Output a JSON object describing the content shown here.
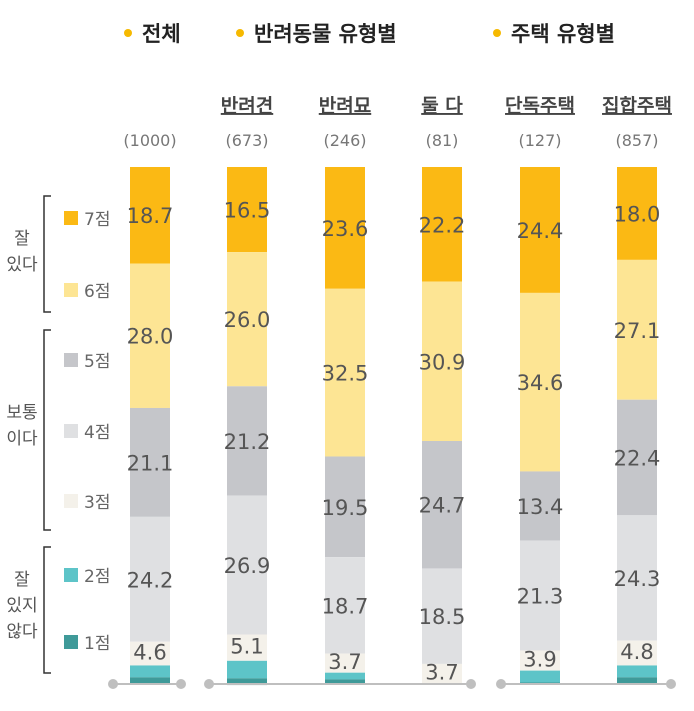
{
  "legend": [
    {
      "label": "전체",
      "color": "#f6b900"
    },
    {
      "label": "반려동물 유형별",
      "color": "#f6b900"
    },
    {
      "label": "주택 유형별",
      "color": "#f6b900"
    }
  ],
  "groups": [
    {
      "label": "잘\n있다",
      "scores": [
        "7점",
        "6점"
      ]
    },
    {
      "label": "보통\n이다",
      "scores": [
        "5점",
        "4점",
        "3점"
      ]
    },
    {
      "label": "잘\n있지\n않다",
      "scores": [
        "2점",
        "1점"
      ]
    }
  ],
  "chart_data": {
    "type": "bar",
    "stacked": true,
    "normalized": true,
    "categories": [
      "",
      "반려견",
      "반려묘",
      "둘 다",
      "단독주택",
      "집합주택"
    ],
    "sample_sizes": [
      "(1000)",
      "(673)",
      "(246)",
      "(81)",
      "(127)",
      "(857)"
    ],
    "series": [
      {
        "name": "7점",
        "color": "#fbb914",
        "values": [
          18.7,
          16.5,
          23.6,
          22.2,
          24.4,
          18.0
        ]
      },
      {
        "name": "6점",
        "color": "#fde594",
        "values": [
          28.0,
          26.0,
          32.5,
          30.9,
          34.6,
          27.1
        ]
      },
      {
        "name": "5점",
        "color": "#c5c6ca",
        "values": [
          21.1,
          21.2,
          19.5,
          24.7,
          13.4,
          22.4
        ]
      },
      {
        "name": "4점",
        "color": "#dfe0e2",
        "values": [
          24.2,
          26.9,
          18.7,
          18.5,
          21.3,
          24.3
        ]
      },
      {
        "name": "3점",
        "color": "#f4f1ea",
        "values": [
          4.6,
          5.1,
          3.7,
          3.7,
          3.9,
          4.8
        ]
      },
      {
        "name": "2점",
        "color": "#5dc4c8",
        "values": [
          2.3,
          3.4,
          1.3,
          0.0,
          2.3,
          2.3
        ]
      },
      {
        "name": "1점",
        "color": "#3f9a99",
        "values": [
          1.1,
          1.3,
          0.7,
          0.0,
          0.1,
          1.2
        ]
      }
    ],
    "value_labels": [
      [
        "18.7",
        "28.0",
        "21.1",
        "24.2",
        "4.6",
        "",
        ""
      ],
      [
        "16.5",
        "26.0",
        "21.2",
        "26.9",
        "5.1",
        "",
        ""
      ],
      [
        "23.6",
        "32.5",
        "19.5",
        "18.7",
        "3.7",
        "",
        ""
      ],
      [
        "22.2",
        "30.9",
        "24.7",
        "18.5",
        "3.7",
        "",
        ""
      ],
      [
        "24.4",
        "34.6",
        "13.4",
        "21.3",
        "3.9",
        "",
        ""
      ],
      [
        "18.0",
        "27.1",
        "22.4",
        "24.3",
        "4.8",
        "",
        ""
      ]
    ],
    "ylim": [
      0,
      100
    ]
  }
}
